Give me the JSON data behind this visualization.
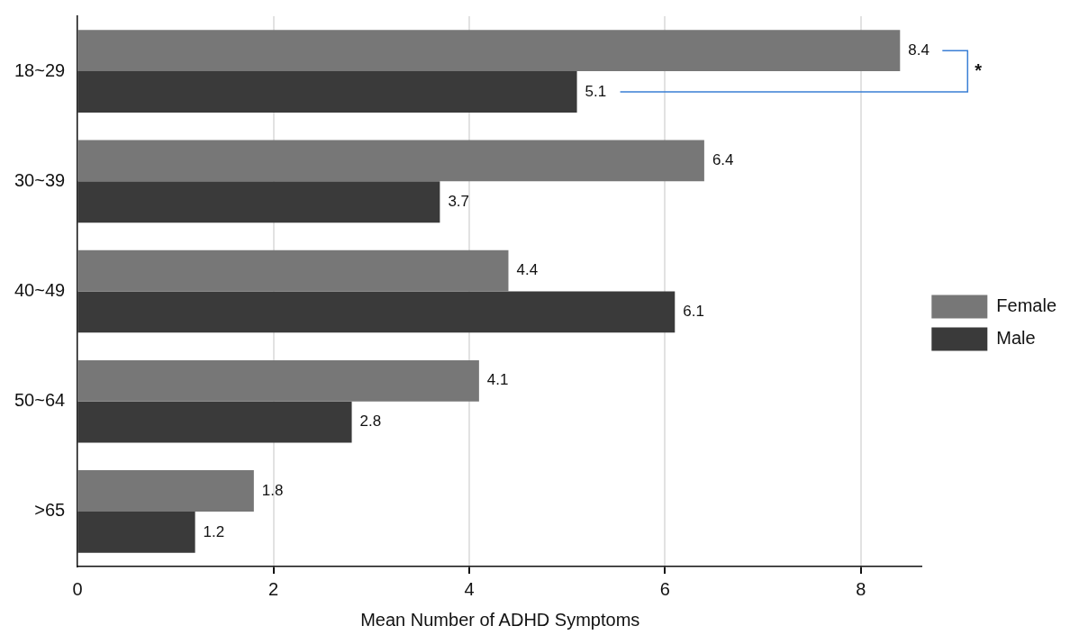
{
  "chart_data": {
    "type": "bar",
    "orientation": "horizontal",
    "xlabel": "Mean Number of ADHD Symptoms",
    "categories": [
      "18~29",
      "30~39",
      "40~49",
      "50~64",
      ">65"
    ],
    "series": [
      {
        "name": "Female",
        "color": "#777777",
        "values": [
          8.4,
          6.4,
          4.4,
          4.1,
          1.8
        ]
      },
      {
        "name": "Male",
        "color": "#3a3a3a",
        "values": [
          5.1,
          3.7,
          6.1,
          2.8,
          1.2
        ]
      }
    ],
    "xlim": [
      0,
      8.63
    ],
    "xticks": [
      0,
      2,
      4,
      6,
      8
    ],
    "grid": "x",
    "legend": "right",
    "data_labels": true,
    "annotations": [
      "*"
    ]
  }
}
